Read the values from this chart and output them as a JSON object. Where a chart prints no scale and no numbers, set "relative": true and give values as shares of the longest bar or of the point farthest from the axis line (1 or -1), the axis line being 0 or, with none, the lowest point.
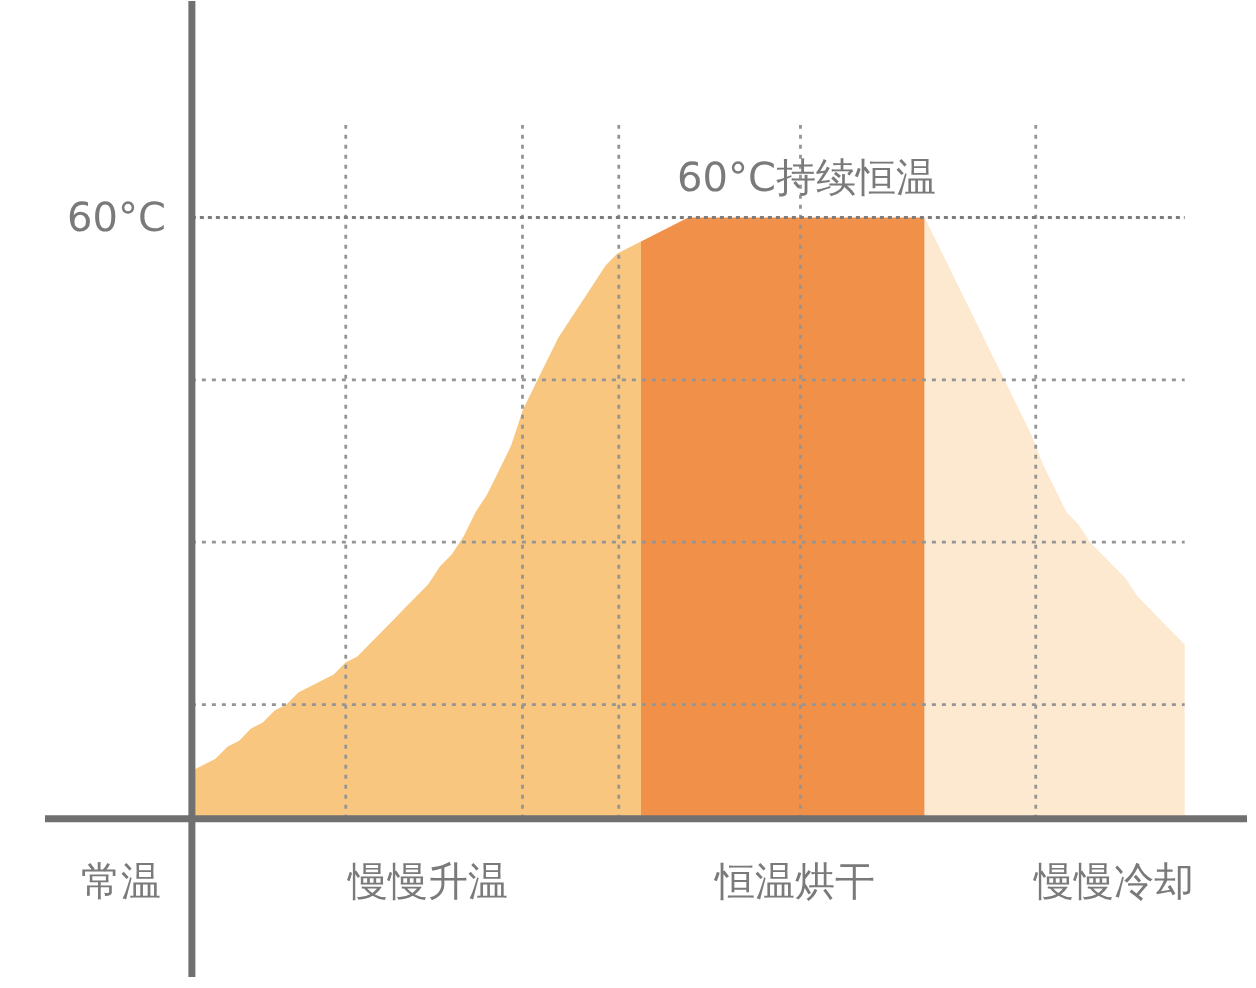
{
  "chart_data": {
    "type": "area",
    "relative": true,
    "categories": [
      "常温",
      null,
      null,
      null,
      null,
      null,
      null,
      null,
      null,
      null,
      null,
      null,
      null,
      null,
      null,
      null,
      null,
      null,
      null,
      null,
      null,
      null,
      null,
      null,
      null,
      null,
      "慢慢升温",
      null,
      null,
      null,
      null,
      null,
      null,
      null,
      null,
      null,
      null,
      null,
      null,
      null,
      null,
      null,
      null,
      null,
      null,
      null,
      null,
      null,
      null,
      null,
      null,
      null,
      null,
      null,
      null,
      null,
      null,
      "恒温烘干",
      null,
      null,
      null,
      null,
      null,
      null,
      null,
      null,
      null,
      null,
      null,
      null,
      null,
      null,
      null,
      null,
      null,
      null,
      null,
      null,
      null,
      null,
      null,
      null,
      null,
      null,
      "慢慢冷却",
      null,
      null,
      null,
      null,
      null,
      null
    ],
    "series": [
      {
        "color": "#f8c67f",
        "values": [
          null,
          null,
          null,
          null,
          null,
          null,
          0.08,
          0.09,
          0.1,
          0.12,
          0.13,
          0.15,
          0.16,
          0.18,
          0.19,
          0.21,
          0.22,
          0.23,
          0.24,
          0.26,
          0.27,
          0.29,
          0.31,
          0.33,
          0.35,
          0.37,
          0.39,
          0.42,
          0.44,
          0.47,
          0.51,
          0.54,
          0.58,
          0.62,
          0.68,
          0.72,
          0.76,
          0.8,
          0.83,
          0.86,
          0.89,
          0.92,
          0.94,
          0.95,
          0.96,
          null,
          null,
          null,
          null,
          null,
          null,
          null,
          null,
          null,
          null,
          null,
          null,
          null,
          null,
          null,
          null,
          null,
          null,
          null,
          null,
          null,
          null,
          null,
          null,
          null,
          null,
          null,
          null,
          null,
          null,
          null,
          null,
          null,
          null,
          null,
          null,
          null,
          null,
          null,
          null,
          null,
          null,
          null,
          null,
          null,
          null
        ]
      },
      {
        "color": "#f19149",
        "values": [
          null,
          null,
          null,
          null,
          null,
          null,
          null,
          null,
          null,
          null,
          null,
          null,
          null,
          null,
          null,
          null,
          null,
          null,
          null,
          null,
          null,
          null,
          null,
          null,
          null,
          null,
          null,
          null,
          null,
          null,
          null,
          null,
          null,
          null,
          null,
          null,
          null,
          null,
          null,
          null,
          null,
          null,
          null,
          null,
          0.96,
          0.97,
          0.98,
          0.99,
          1,
          1,
          1,
          1,
          1,
          1,
          1,
          1,
          1,
          1,
          1,
          1,
          1,
          1,
          1,
          1,
          1,
          1,
          1,
          1,
          1,
          null,
          null,
          null,
          null,
          null,
          null,
          null,
          null,
          null,
          null,
          null,
          null,
          null,
          null,
          null,
          null,
          null,
          null,
          null,
          null,
          null,
          null
        ]
      },
      {
        "color": "#fde9cf",
        "values": [
          null,
          null,
          null,
          null,
          null,
          null,
          null,
          null,
          null,
          null,
          null,
          null,
          null,
          null,
          null,
          null,
          null,
          null,
          null,
          null,
          null,
          null,
          null,
          null,
          null,
          null,
          null,
          null,
          null,
          null,
          null,
          null,
          null,
          null,
          null,
          null,
          null,
          null,
          null,
          null,
          null,
          null,
          null,
          null,
          null,
          null,
          null,
          null,
          null,
          null,
          null,
          null,
          null,
          null,
          null,
          null,
          null,
          null,
          null,
          null,
          null,
          null,
          null,
          null,
          null,
          null,
          null,
          null,
          1,
          0.96,
          0.92,
          0.88,
          0.84,
          0.8,
          0.76,
          0.72,
          0.68,
          0.64,
          0.59,
          0.55,
          0.51,
          0.49,
          0.46,
          0.44,
          0.42,
          0.4,
          0.37,
          0.35,
          0.33,
          0.31,
          0.29
        ]
      }
    ],
    "grid": true,
    "ref_lines": [
      {
        "axis": "y",
        "value": 1,
        "label": "60°C",
        "line_style": "dotted",
        "color": "#7c7c7c"
      }
    ],
    "annotations": [
      "60°C持续恒温"
    ]
  }
}
